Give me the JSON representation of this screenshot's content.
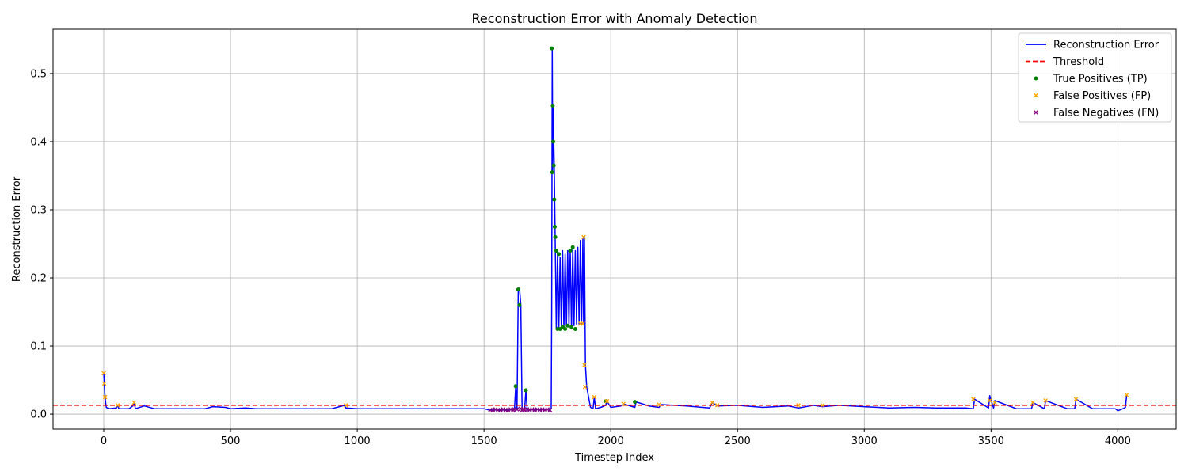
{
  "chart_data": {
    "type": "line",
    "title": "Reconstruction Error with Anomaly Detection",
    "xlabel": "Timestep Index",
    "ylabel": "Reconstruction Error",
    "xlim": [
      -200,
      4230
    ],
    "ylim": [
      -0.022,
      0.565
    ],
    "x_ticks": [
      0,
      500,
      1000,
      1500,
      2000,
      2500,
      3000,
      3500,
      4000
    ],
    "y_ticks": [
      0.0,
      0.1,
      0.2,
      0.3,
      0.4,
      0.5
    ],
    "x_tick_labels": [
      "0",
      "500",
      "1000",
      "1500",
      "2000",
      "2500",
      "3000",
      "3500",
      "4000"
    ],
    "y_tick_labels": [
      "0.0",
      "0.1",
      "0.2",
      "0.3",
      "0.4",
      "0.5"
    ],
    "grid": true,
    "legend_position": "top-right",
    "threshold": {
      "name": "Threshold",
      "value": 0.013,
      "color": "#ff0000",
      "style": "dashed"
    },
    "series": [
      {
        "name": "Reconstruction Error",
        "color": "#0000ff",
        "type": "line",
        "x": [
          0,
          2,
          5,
          10,
          20,
          50,
          55,
          60,
          100,
          115,
          120,
          125,
          160,
          200,
          300,
          400,
          430,
          480,
          500,
          560,
          600,
          700,
          800,
          900,
          950,
          955,
          1000,
          1100,
          1200,
          1300,
          1400,
          1500,
          1520,
          1560,
          1600,
          1620,
          1625,
          1630,
          1635,
          1640,
          1645,
          1650,
          1660,
          1665,
          1670,
          1700,
          1740,
          1765,
          1767,
          1769,
          1771,
          1773,
          1775,
          1777,
          1780,
          1785,
          1790,
          1795,
          1800,
          1805,
          1810,
          1815,
          1820,
          1825,
          1830,
          1835,
          1840,
          1845,
          1850,
          1855,
          1860,
          1865,
          1870,
          1875,
          1880,
          1885,
          1890,
          1893,
          1896,
          1900,
          1905,
          1920,
          1930,
          1935,
          1940,
          1960,
          1980,
          1985,
          2000,
          2040,
          2050,
          2095,
          2100,
          2150,
          2190,
          2200,
          2300,
          2390,
          2400,
          2420,
          2500,
          2600,
          2700,
          2740,
          2800,
          2835,
          2900,
          3000,
          3100,
          3200,
          3280,
          3300,
          3400,
          3430,
          3435,
          3490,
          3495,
          3510,
          3515,
          3600,
          3660,
          3665,
          3710,
          3715,
          3800,
          3830,
          3835,
          3900,
          3990,
          4000,
          4020,
          4030,
          4035
        ],
        "y": [
          0.06,
          0.045,
          0.025,
          0.01,
          0.008,
          0.009,
          0.013,
          0.008,
          0.008,
          0.012,
          0.017,
          0.008,
          0.012,
          0.008,
          0.008,
          0.008,
          0.011,
          0.01,
          0.008,
          0.009,
          0.008,
          0.008,
          0.008,
          0.008,
          0.013,
          0.009,
          0.008,
          0.008,
          0.008,
          0.008,
          0.008,
          0.008,
          0.006,
          0.006,
          0.006,
          0.007,
          0.041,
          0.007,
          0.183,
          0.185,
          0.16,
          0.007,
          0.007,
          0.035,
          0.007,
          0.007,
          0.007,
          0.008,
          0.155,
          0.537,
          0.355,
          0.453,
          0.4,
          0.365,
          0.275,
          0.125,
          0.24,
          0.125,
          0.23,
          0.125,
          0.24,
          0.125,
          0.235,
          0.13,
          0.24,
          0.128,
          0.24,
          0.125,
          0.245,
          0.13,
          0.24,
          0.132,
          0.245,
          0.132,
          0.255,
          0.133,
          0.258,
          0.133,
          0.26,
          0.072,
          0.04,
          0.01,
          0.008,
          0.025,
          0.008,
          0.01,
          0.013,
          0.019,
          0.01,
          0.012,
          0.015,
          0.01,
          0.018,
          0.012,
          0.01,
          0.014,
          0.012,
          0.009,
          0.017,
          0.012,
          0.013,
          0.01,
          0.012,
          0.009,
          0.013,
          0.011,
          0.013,
          0.011,
          0.009,
          0.01,
          0.009,
          0.009,
          0.009,
          0.008,
          0.022,
          0.009,
          0.027,
          0.009,
          0.02,
          0.008,
          0.008,
          0.017,
          0.008,
          0.02,
          0.008,
          0.008,
          0.022,
          0.008,
          0.008,
          0.005,
          0.008,
          0.01,
          0.028
        ]
      },
      {
        "name": "True Positives (TP)",
        "color": "#008000",
        "type": "scatter",
        "marker": "circle",
        "x": [
          1625,
          1635,
          1640,
          1665,
          1767,
          1769,
          1771,
          1773,
          1775,
          1777,
          1779,
          1781,
          1785,
          1790,
          1795,
          1800,
          1810,
          1820,
          1830,
          1840,
          1845,
          1850,
          1860,
          1980,
          2095
        ],
        "y": [
          0.041,
          0.183,
          0.16,
          0.035,
          0.537,
          0.355,
          0.453,
          0.4,
          0.365,
          0.315,
          0.275,
          0.26,
          0.24,
          0.125,
          0.235,
          0.125,
          0.128,
          0.125,
          0.13,
          0.24,
          0.128,
          0.245,
          0.125,
          0.019,
          0.018
        ]
      },
      {
        "name": "False Positives (FP)",
        "color": "#ffa500",
        "type": "scatter",
        "marker": "x",
        "x": [
          0,
          2,
          5,
          55,
          120,
          955,
          1880,
          1890,
          1893,
          1896,
          1898,
          1935,
          1985,
          2050,
          2190,
          2400,
          2420,
          2740,
          2835,
          3430,
          3495,
          3515,
          3665,
          3715,
          3835,
          4035
        ],
        "y": [
          0.06,
          0.045,
          0.025,
          0.013,
          0.017,
          0.013,
          0.133,
          0.133,
          0.26,
          0.072,
          0.04,
          0.025,
          0.019,
          0.015,
          0.014,
          0.017,
          0.013,
          0.013,
          0.013,
          0.022,
          0.02,
          0.017,
          0.017,
          0.02,
          0.022,
          0.028
        ]
      },
      {
        "name": "False Negatives (FN)",
        "color": "#800080",
        "type": "scatter",
        "marker": "x",
        "x": [
          1525,
          1535,
          1545,
          1555,
          1565,
          1575,
          1585,
          1595,
          1605,
          1615,
          1620,
          1630,
          1645,
          1650,
          1655,
          1660,
          1670,
          1680,
          1690,
          1700,
          1710,
          1720,
          1730,
          1740,
          1750,
          1760
        ],
        "y": [
          0.006,
          0.006,
          0.007,
          0.006,
          0.006,
          0.007,
          0.006,
          0.006,
          0.007,
          0.006,
          0.007,
          0.007,
          0.008,
          0.006,
          0.007,
          0.006,
          0.007,
          0.006,
          0.007,
          0.006,
          0.007,
          0.006,
          0.007,
          0.006,
          0.007,
          0.006
        ]
      }
    ]
  }
}
